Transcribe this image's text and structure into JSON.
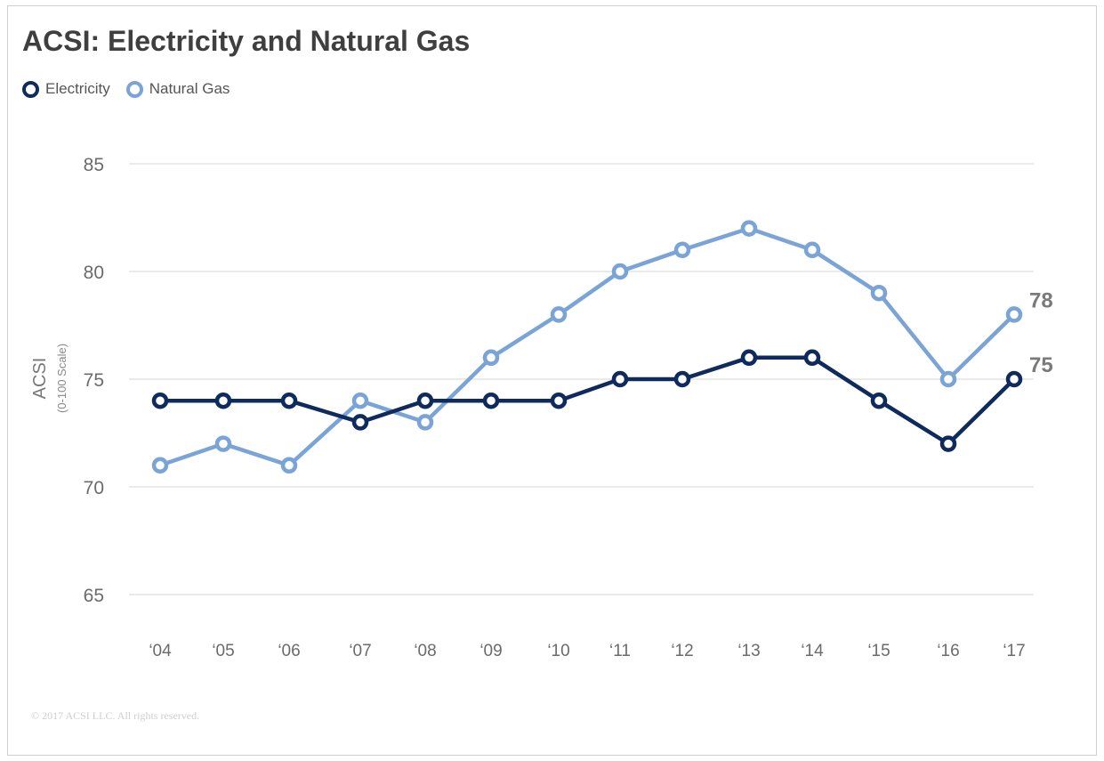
{
  "chart_data": {
    "type": "line",
    "title": "ACSI: Electricity and Natural Gas",
    "ylabel": "ACSI",
    "ylabel_sub": "(0-100 Scale)",
    "xlabel": "",
    "ylim": [
      65,
      85
    ],
    "yticks": [
      "65",
      "70",
      "75",
      "80",
      "85"
    ],
    "categories": [
      "‘04",
      "‘05",
      "‘06",
      "‘07",
      "‘08",
      "‘09",
      "‘10",
      "‘11",
      "‘12",
      "‘13",
      "‘14",
      "‘15",
      "‘16",
      "‘17"
    ],
    "grid": true,
    "legend_placement": "top-left",
    "series": [
      {
        "name": "Electricity",
        "color": "#0f2a5c",
        "values": [
          74,
          74,
          74,
          73,
          74,
          74,
          74,
          75,
          75,
          76,
          76,
          74,
          72,
          75
        ],
        "end_label": "75"
      },
      {
        "name": "Natural Gas",
        "color": "#7aa3d6",
        "values": [
          71,
          72,
          71,
          74,
          73,
          76,
          78,
          80,
          81,
          82,
          81,
          79,
          75,
          78
        ],
        "end_label": "78"
      }
    ]
  },
  "footer": {
    "copyright": "© 2017 ACSI LLC. All rights reserved."
  }
}
